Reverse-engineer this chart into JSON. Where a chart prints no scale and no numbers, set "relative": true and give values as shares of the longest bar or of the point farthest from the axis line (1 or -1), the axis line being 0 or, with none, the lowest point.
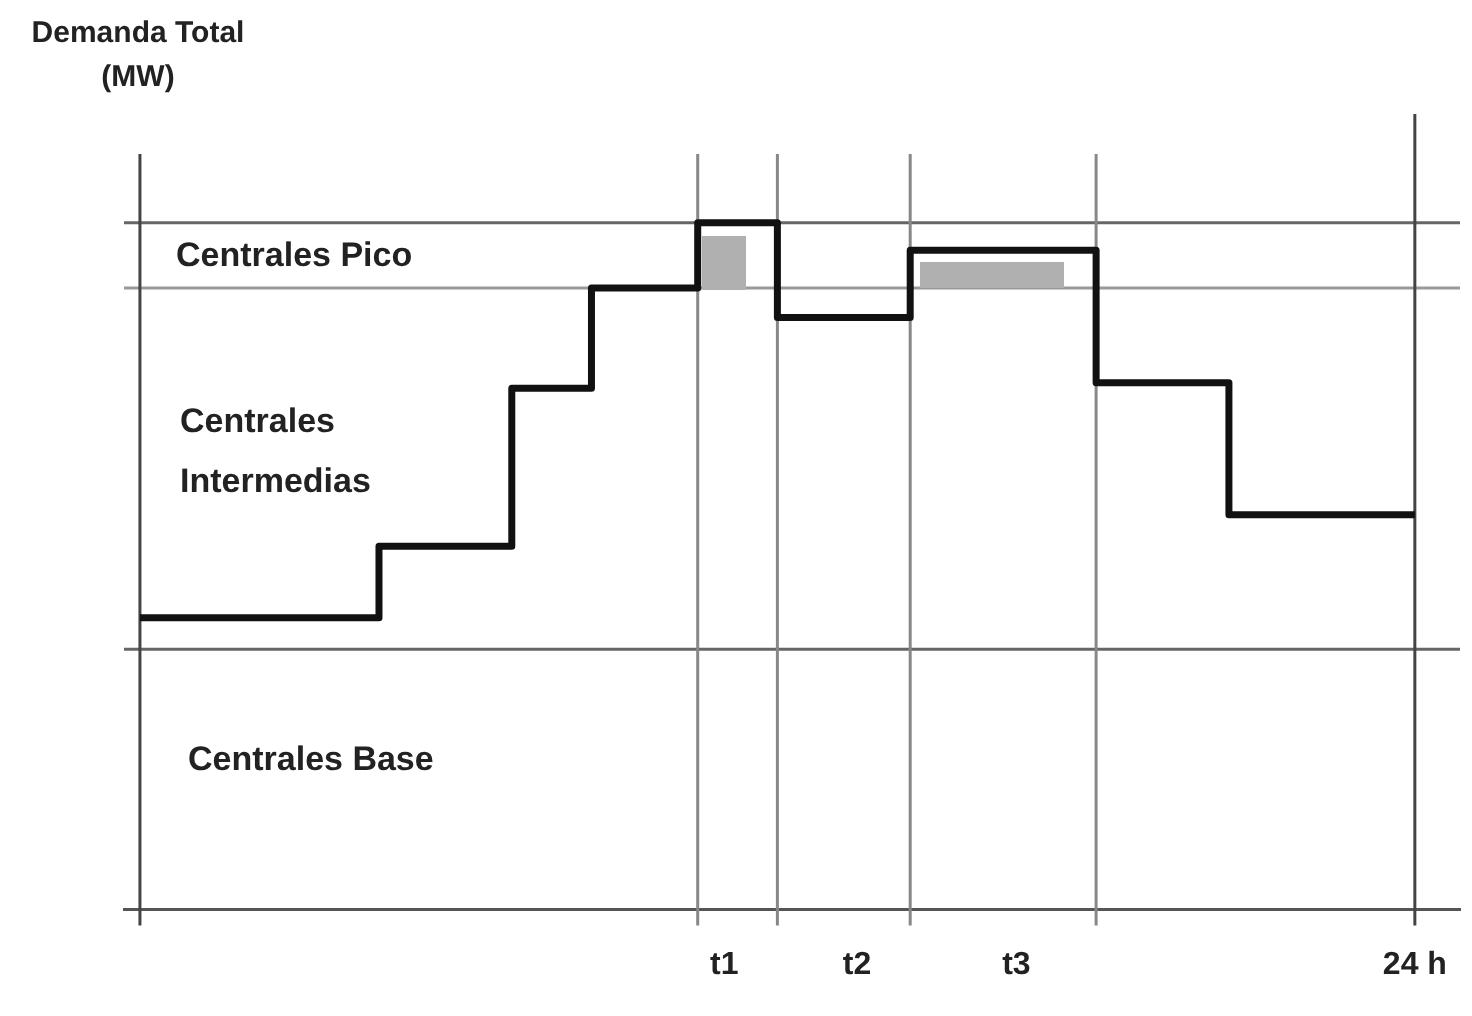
{
  "chart_data": {
    "type": "step",
    "ylabel": "Demanda Total (MW)",
    "relative": true,
    "categories": [
      null,
      null,
      null,
      null,
      null,
      null,
      null,
      null,
      null,
      null,
      null,
      null,
      null,
      null,
      null,
      null,
      null,
      null,
      null,
      null,
      null,
      null,
      "t1",
      null,
      null,
      null,
      null,
      "t2",
      null,
      null,
      null,
      null,
      null,
      "t3",
      null,
      null,
      null,
      null,
      null,
      null,
      null,
      null,
      null,
      null,
      null,
      null,
      null,
      null,
      "24 h"
    ],
    "series": [
      {
        "color": "#111111",
        "values": [
          0.425,
          0.425,
          0.425,
          0.425,
          0.425,
          0.425,
          0.425,
          0.425,
          0.425,
          0.529,
          0.529,
          0.529,
          0.529,
          0.529,
          0.759,
          0.759,
          0.759,
          0.905,
          0.905,
          0.905,
          0.905,
          1,
          1,
          1,
          0.862,
          0.862,
          0.862,
          0.862,
          0.862,
          0.96,
          0.96,
          0.96,
          0.96,
          0.96,
          0.96,
          0.96,
          0.767,
          0.767,
          0.767,
          0.767,
          0.767,
          0.575,
          0.575,
          0.575,
          0.575,
          0.575,
          0.575,
          0.575,
          0.575
        ]
      }
    ],
    "ref_lines": [
      {
        "axis": "y",
        "value": 1,
        "color": "#666666"
      },
      {
        "axis": "y",
        "value": 0.905,
        "color": "#999999"
      },
      {
        "axis": "y",
        "value": 0.379,
        "color": "#666666"
      }
    ],
    "annotations": [
      "Centrales Pico",
      "Centrales Intermedias",
      "Centrales Base"
    ],
    "grid": "x",
    "legend": false,
    "marker": "none",
    "line_style": "solid"
  }
}
